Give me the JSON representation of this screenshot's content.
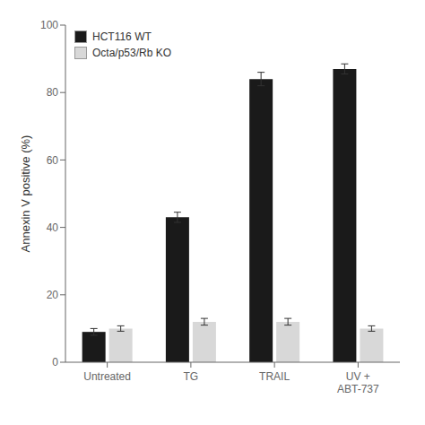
{
  "chart_data": {
    "type": "bar",
    "categories": [
      "Untreated",
      "TG",
      "TRAIL",
      "UV +\nABT-737"
    ],
    "series": [
      {
        "name": "HCT116 WT",
        "color": "#1a1a1a",
        "values": [
          9,
          43,
          84,
          87
        ],
        "errors": [
          1,
          1.5,
          2,
          1.5
        ]
      },
      {
        "name": "Octa/p53/Rb KO",
        "color": "#d8d8d8",
        "values": [
          10,
          12,
          12,
          10
        ],
        "errors": [
          0.8,
          1,
          1,
          0.8
        ]
      }
    ],
    "ylabel": "Annexin V positive (%)",
    "ylim": [
      0,
      100
    ],
    "yticks": [
      0,
      20,
      40,
      60,
      80,
      100
    ],
    "legend": "top-left",
    "grid": false
  }
}
